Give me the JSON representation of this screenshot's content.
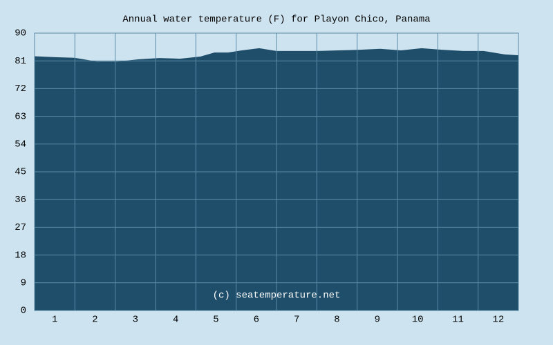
{
  "chart_data": {
    "type": "area",
    "title": "Annual water temperature (F) for Playon Chico, Panama",
    "annotation": "(c) seatemperature.net",
    "x": [
      0.5,
      1.01,
      1.49,
      2.04,
      2.56,
      3.07,
      3.59,
      4.1,
      4.61,
      4.96,
      5.3,
      5.64,
      6.07,
      6.5,
      7.01,
      7.53,
      8.04,
      8.56,
      9.07,
      9.59,
      10.1,
      10.61,
      11.13,
      11.64,
      12.16,
      12.5
    ],
    "values": [
      82.5,
      82.2,
      82.0,
      80.8,
      80.8,
      81.5,
      81.9,
      81.7,
      82.4,
      83.7,
      83.7,
      84.4,
      85.1,
      84.2,
      84.2,
      84.2,
      84.4,
      84.6,
      84.9,
      84.4,
      85.1,
      84.6,
      84.2,
      84.2,
      83.1,
      82.8
    ],
    "color": "#1f4e6b",
    "xlim": [
      0.5,
      12.5
    ],
    "xticks": [
      1,
      2,
      3,
      4,
      5,
      6,
      7,
      8,
      9,
      10,
      11,
      12
    ],
    "ylim": [
      0,
      90
    ],
    "yticks": [
      0,
      9,
      18,
      27,
      36,
      45,
      54,
      63,
      72,
      81,
      90
    ],
    "grid": true
  }
}
